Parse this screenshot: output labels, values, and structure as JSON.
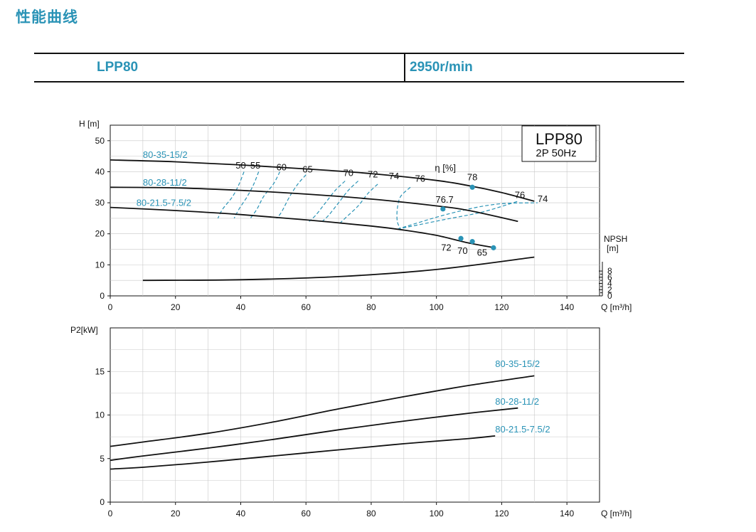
{
  "page": {
    "title": "性能曲线",
    "model": "LPP80",
    "speed": "2950r/min"
  },
  "chart_data": [
    {
      "type": "line",
      "name_box": {
        "model": "LPP80",
        "spec": "2P 50Hz"
      },
      "xlabel": "Q [m³/h]",
      "ylabel": "H [m]",
      "xlim": [
        0,
        150
      ],
      "ylim": [
        0,
        55
      ],
      "xticks": [
        0,
        20,
        40,
        60,
        80,
        100,
        120,
        140
      ],
      "yticks": [
        0,
        10,
        20,
        30,
        40,
        50
      ],
      "grid": true,
      "series": [
        {
          "name": "80-35-15/2",
          "x": [
            0,
            20,
            40,
            60,
            80,
            100,
            110,
            120,
            130
          ],
          "y": [
            43.8,
            43.2,
            42.2,
            40.9,
            39.4,
            37.2,
            35.5,
            33.3,
            30.5
          ]
        },
        {
          "name": "80-28-11/2",
          "x": [
            0,
            20,
            40,
            60,
            80,
            100,
            110,
            125
          ],
          "y": [
            35.0,
            34.8,
            34.0,
            32.8,
            31.2,
            29.0,
            27.5,
            24.0
          ]
        },
        {
          "name": "80-21.5-7.5/2",
          "x": [
            0,
            20,
            40,
            60,
            80,
            90,
            100,
            110,
            118
          ],
          "y": [
            28.5,
            27.5,
            26.2,
            24.5,
            22.5,
            21.2,
            19.5,
            17.0,
            15.5
          ]
        },
        {
          "name": "NPSH",
          "x": [
            10,
            40,
            70,
            100,
            130
          ],
          "y": [
            5.0,
            5.2,
            6.2,
            8.5,
            12.5
          ]
        }
      ],
      "efficiency": {
        "label": "η [%]",
        "iso_labels": [
          "50",
          "55",
          "60",
          "65",
          "70",
          "72",
          "74",
          "76"
        ],
        "iso_curves": [
          {
            "label": "50",
            "q": [
              41,
              39.5,
              37.5,
              34.5,
              33
            ],
            "h": [
              40,
              36,
              32,
              28,
              25
            ]
          },
          {
            "label": "55",
            "q": [
              45.5,
              44,
              42,
              39.5,
              38
            ],
            "h": [
              40,
              36,
              32,
              28,
              25
            ]
          },
          {
            "label": "60",
            "q": [
              52,
              50,
              47,
              45,
              43
            ],
            "h": [
              40,
              36,
              32,
              28,
              25
            ]
          },
          {
            "label": "65",
            "q": [
              60,
              57.5,
              55,
              52.5,
              51
            ],
            "h": [
              39,
              36,
              32,
              27,
              25
            ]
          },
          {
            "label": "70",
            "q": [
              72,
              69,
              66,
              63,
              61
            ],
            "h": [
              37,
              34,
              30,
              26,
              24
            ]
          },
          {
            "label": "72",
            "q": [
              76,
              73,
              70,
              67,
              65
            ],
            "h": [
              37,
              34,
              30,
              26,
              24
            ]
          },
          {
            "label": "74",
            "q": [
              82,
              79,
              76,
              72,
              70
            ],
            "h": [
              36,
              33,
              29,
              25,
              23
            ]
          },
          {
            "label": "76",
            "q": [
              92,
              89,
              88,
              88,
              89
            ],
            "h": [
              35,
              32,
              28,
              24,
              21.5
            ]
          }
        ],
        "best_points": [
          {
            "label": "78",
            "q": 111,
            "h": 35
          },
          {
            "label": "76.7",
            "q": 102,
            "h": 28
          },
          {
            "label": "72",
            "q": 107.5,
            "h": 18.5
          },
          {
            "label": "70",
            "q": 111,
            "h": 17.5
          },
          {
            "label": "65",
            "q": 117.5,
            "h": 15.5
          }
        ],
        "right_labels": [
          {
            "label": "76",
            "q": 125,
            "h": 30.5
          },
          {
            "label": "74",
            "q": 131,
            "h": 29.5
          }
        ]
      },
      "npsh_axis": {
        "label": "NPSH [m]",
        "ticks": [
          "0",
          "2",
          "4",
          "6",
          "8"
        ]
      }
    },
    {
      "type": "line",
      "xlabel": "Q [m³/h]",
      "ylabel": "P2[kW]",
      "xlim": [
        0,
        150
      ],
      "ylim": [
        0,
        20
      ],
      "xticks": [
        0,
        20,
        40,
        60,
        80,
        100,
        120,
        140
      ],
      "yticks": [
        0,
        5,
        10,
        15
      ],
      "grid": true,
      "series": [
        {
          "name": "80-35-15/2",
          "x": [
            0,
            10,
            30,
            50,
            70,
            90,
            110,
            130
          ],
          "y": [
            6.4,
            6.9,
            7.9,
            9.2,
            10.7,
            12.1,
            13.4,
            14.5
          ]
        },
        {
          "name": "80-28-11/2",
          "x": [
            0,
            10,
            30,
            50,
            70,
            90,
            110,
            125
          ],
          "y": [
            4.8,
            5.3,
            6.2,
            7.2,
            8.3,
            9.3,
            10.2,
            10.8
          ]
        },
        {
          "name": "80-21.5-7.5/2",
          "x": [
            0,
            10,
            30,
            50,
            70,
            90,
            110,
            118
          ],
          "y": [
            3.8,
            4.0,
            4.6,
            5.3,
            6.0,
            6.7,
            7.3,
            7.6
          ]
        }
      ]
    }
  ]
}
